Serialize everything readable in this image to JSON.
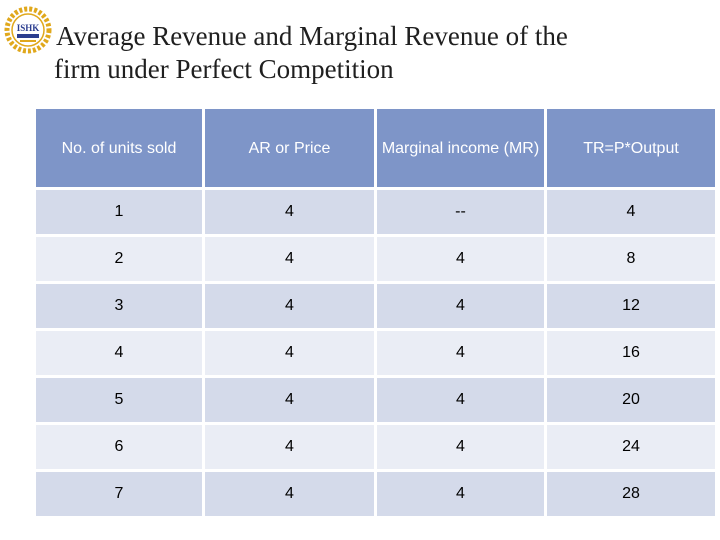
{
  "slide": {
    "title_line1": "Average Revenue and Marginal Revenue of the",
    "title_line2": "firm under Perfect Competition",
    "logo_text": "ISHK"
  },
  "table": {
    "headers": [
      "No. of units sold",
      "AR or Price",
      "Marginal income (MR)",
      "TR=P*Output"
    ],
    "rows": [
      [
        "1",
        "4",
        "--",
        "4"
      ],
      [
        "2",
        "4",
        "4",
        "8"
      ],
      [
        "3",
        "4",
        "4",
        "12"
      ],
      [
        "4",
        "4",
        "4",
        "16"
      ],
      [
        "5",
        "4",
        "4",
        "20"
      ],
      [
        "6",
        "4",
        "4",
        "24"
      ],
      [
        "7",
        "4",
        "4",
        "28"
      ]
    ]
  },
  "colors": {
    "header": "#7e95c8",
    "row_odd": "#d4daea",
    "row_even": "#eaedf5",
    "logo_gold": "#e0a81c",
    "logo_blue": "#2b3d8f"
  }
}
